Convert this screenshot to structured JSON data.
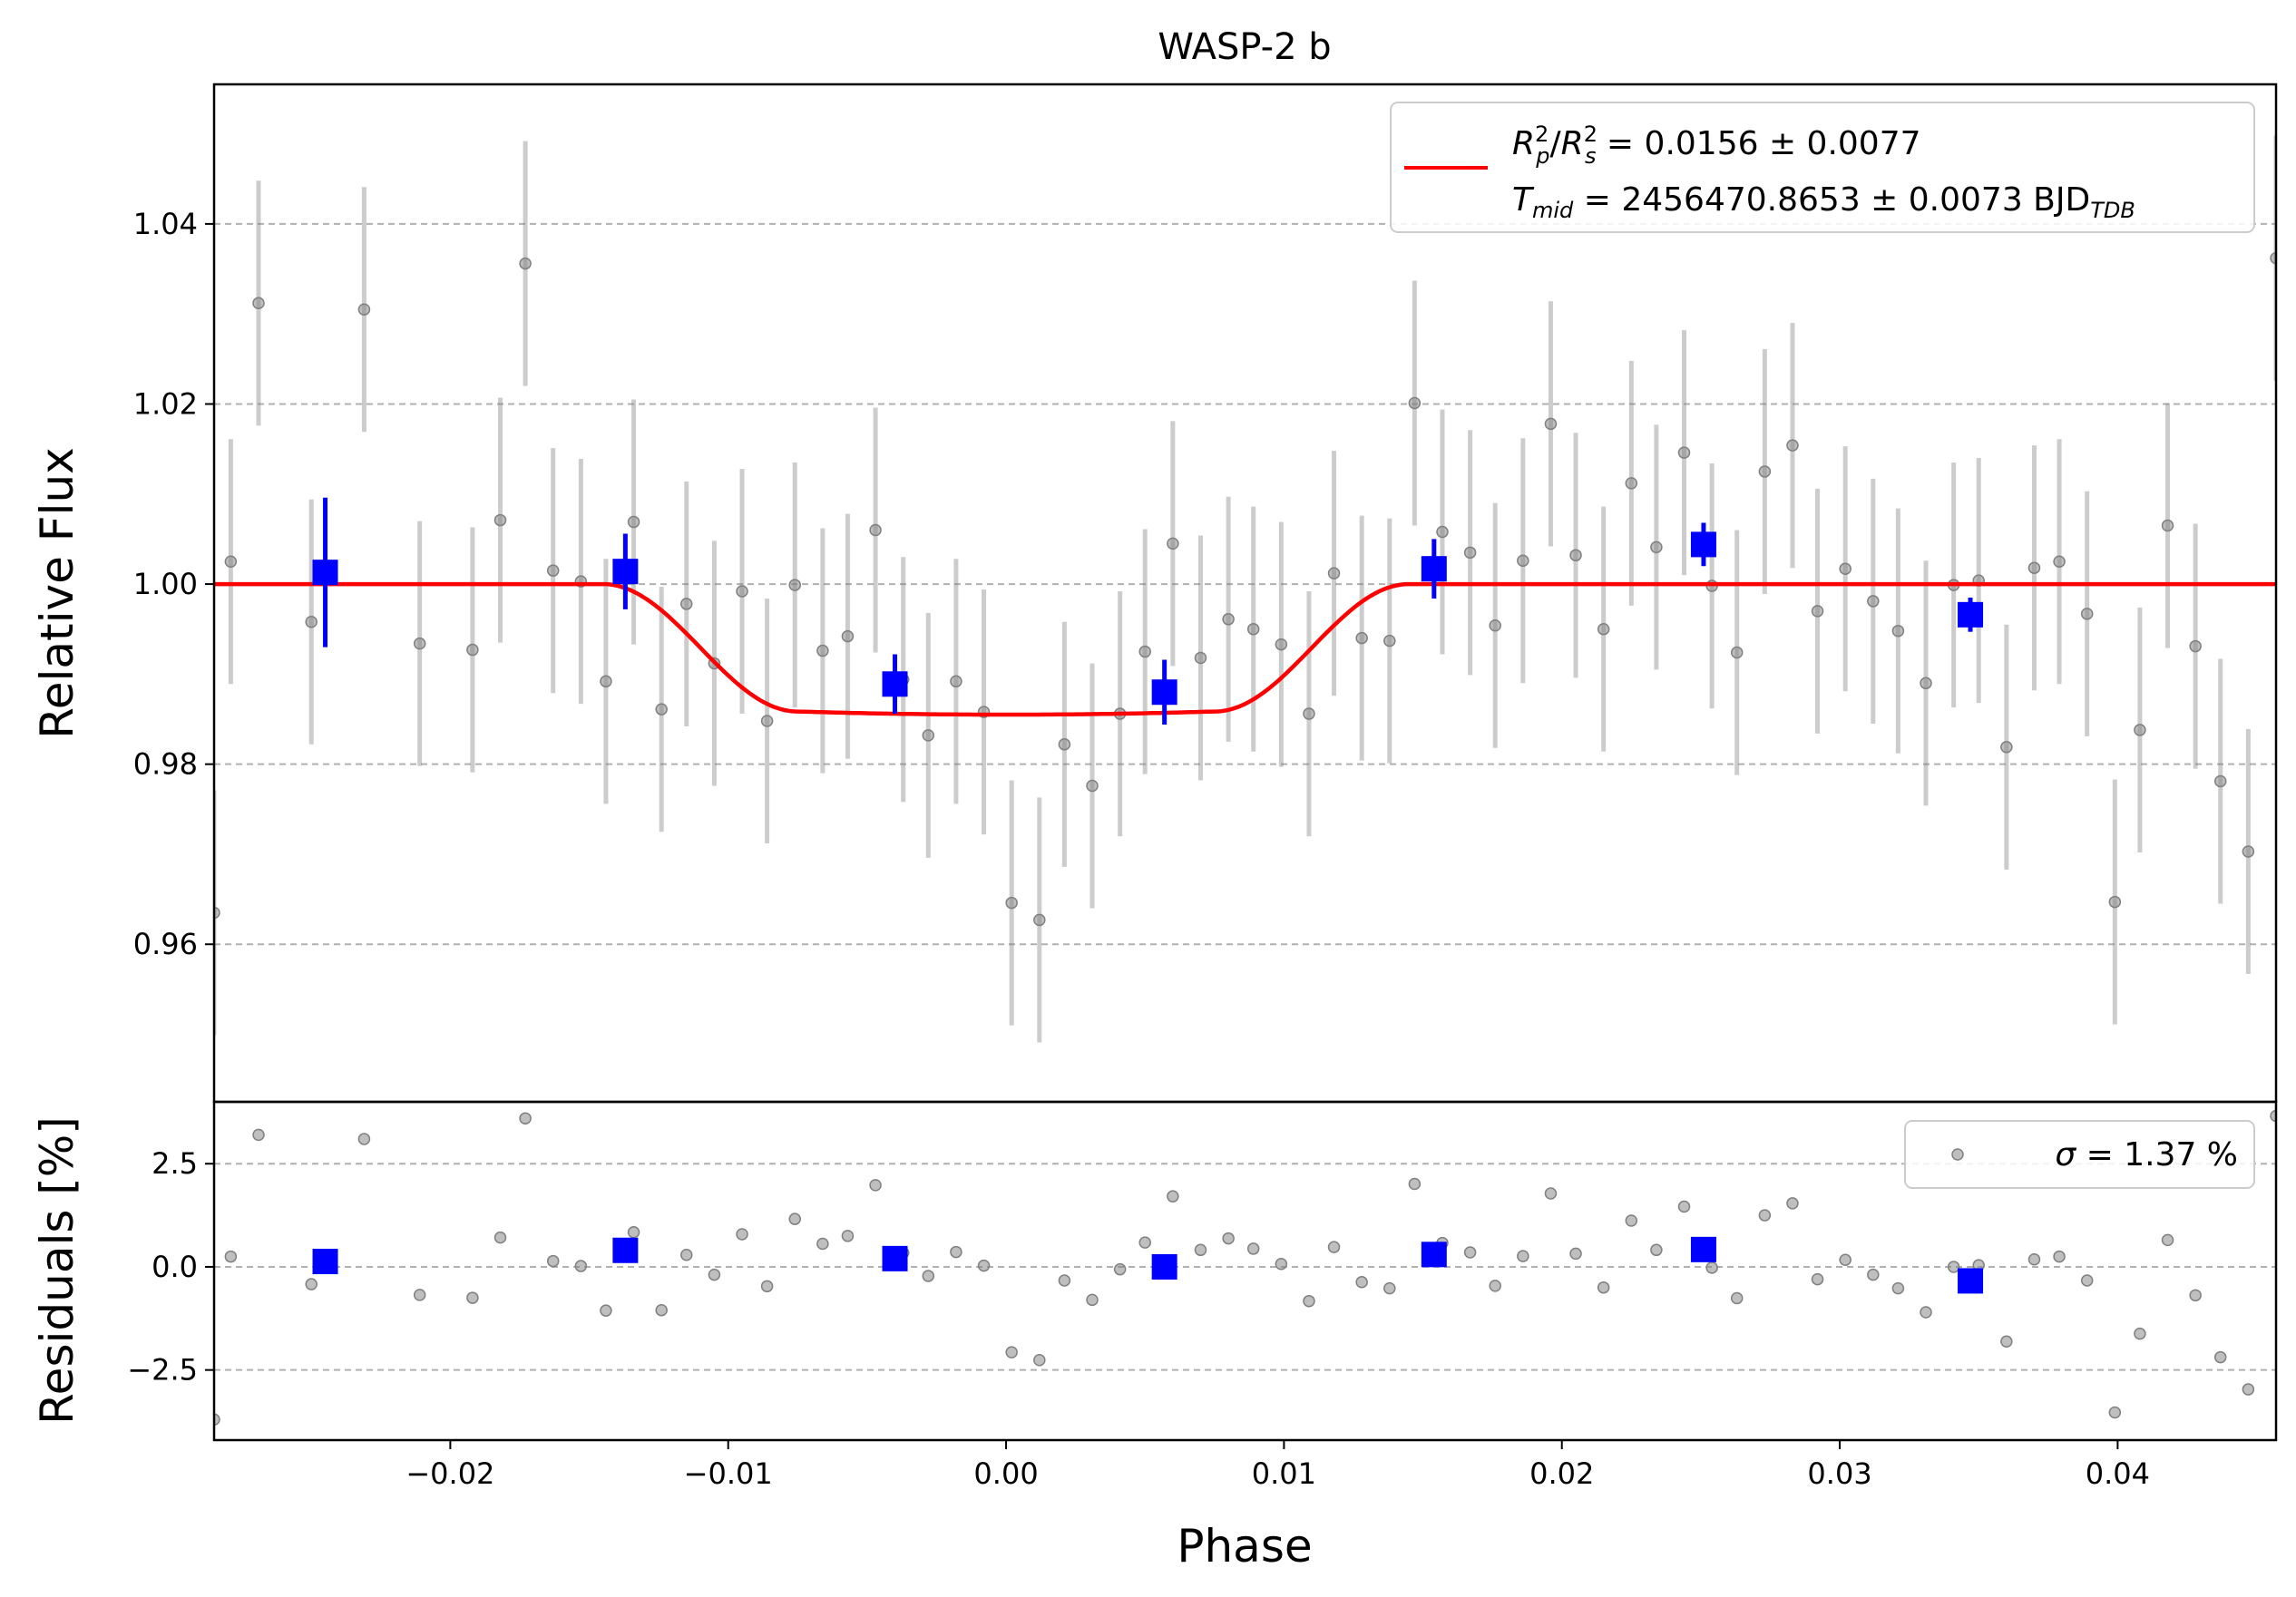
{
  "chart_data": [
    {
      "panel": "flux",
      "type": "scatter",
      "title": "WASP-2 b",
      "xlabel": "",
      "ylabel": "Relative Flux",
      "xlim": [
        -0.0285,
        0.0457
      ],
      "ylim": [
        0.9425,
        1.0555
      ],
      "xticks": [
        -0.02,
        -0.01,
        0.0,
        0.01,
        0.02,
        0.03,
        0.04
      ],
      "yticks": [
        0.96,
        0.98,
        1.0,
        1.02,
        1.04
      ],
      "ytick_labels": [
        "0.96",
        "0.98",
        "1.00",
        "1.02",
        "1.04"
      ],
      "grid": "horizontal dashed",
      "legend_position": "top-right",
      "legend": {
        "line1_main": "R",
        "line1_p_sub": "p",
        "line1_s_sub": "s",
        "line1_sup": "2",
        "line1_value": " = 0.0156 ± 0.0077",
        "line2_main": "T",
        "line2_sub": "mid",
        "line2_value": " = 2456470.8653 ± 0.0073 BJD",
        "line2_unit_sub": "TDB"
      },
      "raw_points": {
        "color": "#808080",
        "x": [
          -0.0285,
          -0.0279,
          -0.0269,
          -0.025,
          -0.0231,
          -0.0211,
          -0.0192,
          -0.0182,
          -0.0173,
          -0.0163,
          -0.0153,
          -0.0144,
          -0.0134,
          -0.0124,
          -0.0115,
          -0.0105,
          -0.0095,
          -0.0086,
          -0.0076,
          -0.0066,
          -0.0057,
          -0.0047,
          -0.0037,
          -0.0028,
          -0.0018,
          -0.0008,
          0.0002,
          0.0012,
          0.0021,
          0.0031,
          0.0041,
          0.005,
          0.006,
          0.007,
          0.008,
          0.0089,
          0.0099,
          0.0109,
          0.0118,
          0.0128,
          0.0138,
          0.0147,
          0.0157,
          0.0167,
          0.0176,
          0.0186,
          0.0196,
          0.0205,
          0.0215,
          0.0225,
          0.0234,
          0.0244,
          0.0254,
          0.0263,
          0.0273,
          0.0283,
          0.0292,
          0.0302,
          0.0312,
          0.0321,
          0.0331,
          0.0341,
          0.035,
          0.036,
          0.037,
          0.0379,
          0.0389,
          0.0399,
          0.0408,
          0.0418,
          0.0428,
          0.0437,
          0.0447,
          0.0457
        ],
        "y": [
          0.9635,
          1.0025,
          1.0312,
          0.9958,
          1.0305,
          0.9934,
          0.9927,
          1.0071,
          1.0356,
          1.0015,
          1.0003,
          0.9892,
          1.0069,
          0.9861,
          0.9978,
          0.9912,
          0.9992,
          0.9848,
          0.9999,
          0.9926,
          0.9942,
          1.006,
          0.9894,
          0.9832,
          0.9892,
          0.9858,
          0.9646,
          0.9627,
          0.9822,
          0.9776,
          0.9856,
          0.9925,
          1.0045,
          0.9918,
          0.9961,
          0.995,
          0.9933,
          0.9856,
          1.0012,
          0.994,
          0.9937,
          1.0201,
          1.0058,
          1.0035,
          0.9954,
          1.0026,
          1.0178,
          1.0032,
          0.995,
          1.0112,
          1.0041,
          1.0146,
          0.9998,
          0.9924,
          1.0125,
          1.0154,
          0.997,
          1.0017,
          0.9981,
          0.9948,
          0.989,
          0.9999,
          1.0004,
          0.9819,
          1.0018,
          1.0025,
          0.9967,
          0.9647,
          0.9838,
          1.0065,
          0.9931,
          0.9781,
          0.9703,
          1.0362
        ],
        "yerr": 0.0136
      },
      "binned_points": {
        "color": "#0000ff",
        "x": [
          -0.0245,
          -0.0137,
          -0.004,
          0.0057,
          0.0154,
          0.0251,
          0.0347
        ],
        "y": [
          1.0013,
          1.0014,
          0.9889,
          0.988,
          1.0017,
          1.0044,
          0.9966
        ],
        "yerr": [
          0.0083,
          0.0042,
          0.0033,
          0.0036,
          0.0033,
          0.0024,
          0.0019
        ]
      },
      "model": {
        "color": "#ff0000",
        "depth": 0.0145,
        "t_ingress_start": -0.0145,
        "t_full_start": -0.0075,
        "t_full_end": 0.0075,
        "t_egress_end": 0.0145,
        "curvature": 0.0007
      }
    },
    {
      "panel": "residuals",
      "type": "scatter",
      "xlabel": "Phase",
      "ylabel": "Residuals [%]",
      "xlim": [
        -0.0285,
        0.0457
      ],
      "ylim": [
        -4.2,
        4.0
      ],
      "xticks": [
        -0.02,
        -0.01,
        0.0,
        0.01,
        0.02,
        0.03,
        0.04
      ],
      "xtick_labels": [
        "−0.02",
        "−0.01",
        "0.00",
        "0.01",
        "0.02",
        "0.03",
        "0.04"
      ],
      "yticks": [
        -2.5,
        0.0,
        2.5
      ],
      "ytick_labels": [
        "−2.5",
        "0.0",
        "2.5"
      ],
      "grid": "horizontal dashed",
      "legend_position": "top-right",
      "legend": {
        "sigma_symbol": "σ",
        "sigma_value": " = 1.37 %"
      },
      "raw_points": {
        "color": "#808080",
        "x": [
          -0.0285,
          -0.0279,
          -0.0269,
          -0.025,
          -0.0231,
          -0.0211,
          -0.0192,
          -0.0182,
          -0.0173,
          -0.0163,
          -0.0153,
          -0.0144,
          -0.0134,
          -0.0124,
          -0.0115,
          -0.0105,
          -0.0095,
          -0.0086,
          -0.0076,
          -0.0066,
          -0.0057,
          -0.0047,
          -0.0037,
          -0.0028,
          -0.0018,
          -0.0008,
          0.0002,
          0.0012,
          0.0021,
          0.0031,
          0.0041,
          0.005,
          0.006,
          0.007,
          0.008,
          0.0089,
          0.0099,
          0.0109,
          0.0118,
          0.0128,
          0.0138,
          0.0147,
          0.0157,
          0.0167,
          0.0176,
          0.0186,
          0.0196,
          0.0205,
          0.0215,
          0.0225,
          0.0234,
          0.0244,
          0.0254,
          0.0263,
          0.0273,
          0.0283,
          0.0292,
          0.0302,
          0.0312,
          0.0321,
          0.0331,
          0.0341,
          0.035,
          0.036,
          0.037,
          0.0379,
          0.0389,
          0.0399,
          0.0408,
          0.0418,
          0.0428,
          0.0437,
          0.0447,
          0.0457
        ],
        "y": [
          -3.7,
          0.25,
          3.2,
          -0.42,
          3.1,
          -0.68,
          -0.75,
          0.71,
          3.6,
          0.14,
          0.02,
          -1.06,
          0.84,
          -1.05,
          0.29,
          -0.19,
          0.79,
          -0.47,
          1.16,
          0.56,
          0.75,
          1.98,
          0.34,
          -0.22,
          0.36,
          0.03,
          -2.07,
          -2.26,
          -0.33,
          -0.8,
          -0.06,
          0.59,
          1.71,
          0.41,
          0.69,
          0.44,
          0.07,
          -0.83,
          0.48,
          -0.37,
          -0.52,
          2.01,
          0.58,
          0.35,
          -0.46,
          0.26,
          1.78,
          0.32,
          -0.5,
          1.12,
          0.41,
          1.46,
          -0.02,
          -0.76,
          1.25,
          1.54,
          -0.3,
          0.17,
          -0.19,
          -0.52,
          -1.1,
          0.0,
          0.04,
          -1.81,
          0.18,
          0.25,
          -0.33,
          -3.53,
          -1.62,
          0.65,
          -0.69,
          -2.19,
          -2.97,
          3.66
        ]
      },
      "binned_points": {
        "color": "#0000ff",
        "x": [
          -0.0245,
          -0.0137,
          -0.004,
          0.0057,
          0.0154,
          0.0251,
          0.0347
        ],
        "y": [
          0.13,
          0.4,
          0.2,
          0.0,
          0.3,
          0.42,
          -0.34
        ]
      }
    }
  ]
}
